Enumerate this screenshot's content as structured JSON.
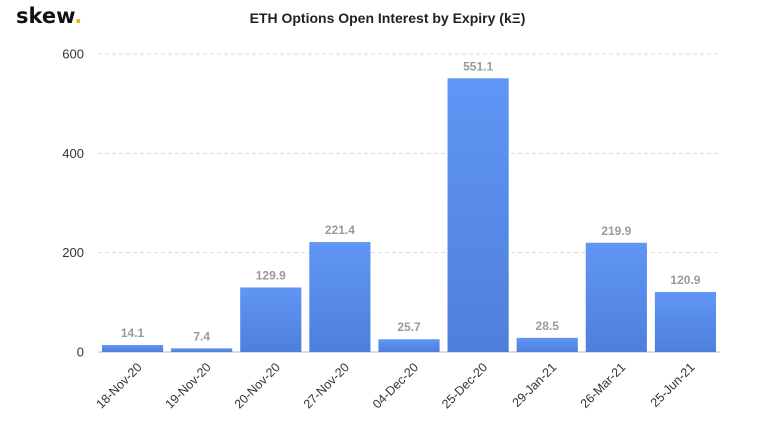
{
  "brand": {
    "name": "skew",
    "dot": "."
  },
  "chart_data": {
    "type": "bar",
    "title": "ETH Options Open Interest by Expiry (kΞ)",
    "xlabel": "",
    "ylabel": "",
    "categories": [
      "18-Nov-20",
      "19-Nov-20",
      "20-Nov-20",
      "27-Nov-20",
      "04-Dec-20",
      "25-Dec-20",
      "29-Jan-21",
      "26-Mar-21",
      "25-Jun-21"
    ],
    "values": [
      14.1,
      7.4,
      129.9,
      221.4,
      25.7,
      551.1,
      28.5,
      219.9,
      120.9
    ],
    "value_labels": [
      "14.1",
      "7.4",
      "129.9",
      "221.4",
      "25.7",
      "551.1",
      "28.5",
      "219.9",
      "120.9"
    ],
    "ylim": [
      0,
      600
    ],
    "yticks": [
      0,
      200,
      400,
      600
    ],
    "ytick_labels": [
      "0",
      "200",
      "400",
      "600"
    ],
    "grid": true,
    "bar_color_top": "#6096f5",
    "bar_color_bottom": "#4f7fdc",
    "label_color": "#9a9a9a"
  }
}
